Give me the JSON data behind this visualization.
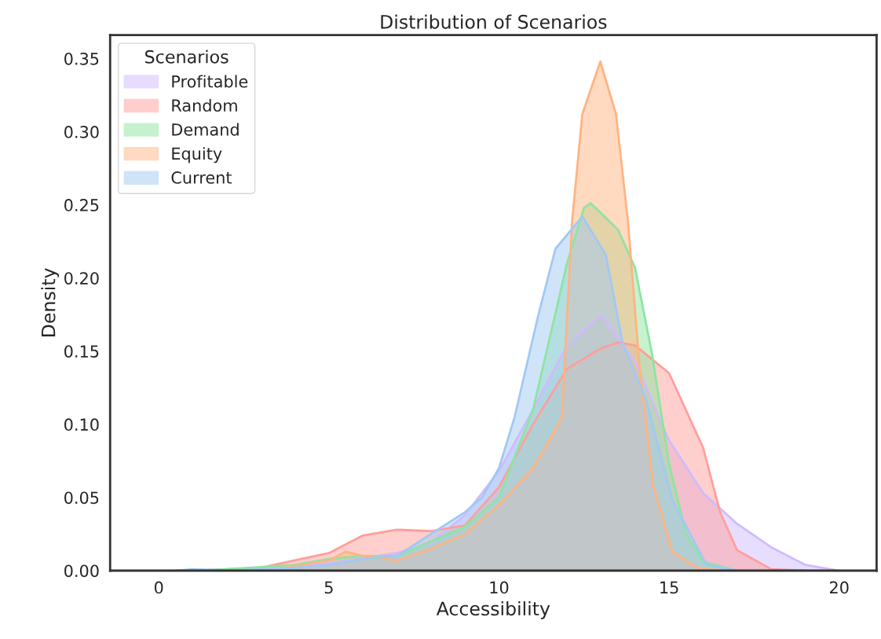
{
  "chart_data": {
    "type": "area",
    "title": "Distribution of Scenarios",
    "xlabel": "Accessibility",
    "ylabel": "Density",
    "legend_title": "Scenarios",
    "legend": "top left",
    "grid": false,
    "xlim": [
      -1.43,
      21.1
    ],
    "ylim": [
      0,
      0.366
    ],
    "xticks": [
      0,
      5,
      10,
      15,
      20
    ],
    "yticks": [
      {
        "value": 0,
        "label": "0.00"
      },
      {
        "value": 0.05,
        "label": "0.05"
      },
      {
        "value": 0.1,
        "label": "0.10"
      },
      {
        "value": 0.15,
        "label": "0.15"
      },
      {
        "value": 0.2,
        "label": "0.20"
      },
      {
        "value": 0.25,
        "label": "0.25"
      },
      {
        "value": 0.3,
        "label": "0.30"
      },
      {
        "value": 0.35,
        "label": "0.35"
      }
    ],
    "series": [
      {
        "name": "Profitable",
        "color": "#d0bbff",
        "x": [
          1,
          3,
          5,
          7,
          8,
          9,
          10,
          11,
          12,
          13,
          14,
          15,
          16,
          17,
          18,
          19,
          20
        ],
        "values": [
          0,
          0.002,
          0.005,
          0.012,
          0.019,
          0.038,
          0.068,
          0.11,
          0.154,
          0.175,
          0.143,
          0.089,
          0.053,
          0.032,
          0.016,
          0.004,
          0
        ]
      },
      {
        "name": "Random",
        "color": "#ff9f9b",
        "x": [
          2,
          3,
          4,
          5,
          6,
          7,
          8,
          9,
          10,
          11,
          12,
          13,
          13.5,
          14,
          15,
          16,
          16.5,
          17,
          18,
          19
        ],
        "values": [
          0,
          0.002,
          0.007,
          0.012,
          0.024,
          0.028,
          0.027,
          0.031,
          0.057,
          0.1,
          0.138,
          0.152,
          0.156,
          0.154,
          0.135,
          0.084,
          0.04,
          0.014,
          0.001,
          0
        ]
      },
      {
        "name": "Demand",
        "color": "#8de5a1",
        "x": [
          1,
          2,
          4,
          5,
          6,
          7,
          8,
          9,
          10,
          10.5,
          11,
          12,
          12.5,
          12.7,
          13.5,
          14,
          14.5,
          15,
          15.5,
          16,
          17
        ],
        "values": [
          0,
          0.001,
          0.004,
          0.008,
          0.01,
          0.01,
          0.02,
          0.03,
          0.05,
          0.08,
          0.11,
          0.21,
          0.248,
          0.251,
          0.233,
          0.207,
          0.148,
          0.073,
          0.025,
          0.006,
          0
        ]
      },
      {
        "name": "Equity",
        "color": "#ffb482",
        "x": [
          3,
          4,
          5,
          5.5,
          6,
          7,
          8,
          9,
          10,
          11,
          11.5,
          11.85,
          12.15,
          12.45,
          12.98,
          13.44,
          13.79,
          14.13,
          14.53,
          15.1,
          15.9,
          17
        ],
        "values": [
          0,
          0.003,
          0.007,
          0.013,
          0.01,
          0.007,
          0.015,
          0.025,
          0.045,
          0.07,
          0.09,
          0.105,
          0.239,
          0.312,
          0.348,
          0.312,
          0.239,
          0.14,
          0.059,
          0.013,
          0.001,
          0
        ]
      },
      {
        "name": "Current",
        "color": "#a1c9f4",
        "x": [
          0.5,
          1,
          2,
          4,
          5,
          6,
          7,
          8,
          9,
          9.5,
          10,
          10.46,
          11.15,
          11.66,
          12.45,
          13.14,
          13.63,
          14.32,
          15.1,
          16.1,
          17
        ],
        "values": [
          0,
          0.001,
          0,
          0.002,
          0.004,
          0.008,
          0.01,
          0.025,
          0.04,
          0.05,
          0.07,
          0.105,
          0.174,
          0.22,
          0.242,
          0.216,
          0.156,
          0.117,
          0.048,
          0.004,
          0
        ]
      }
    ]
  }
}
